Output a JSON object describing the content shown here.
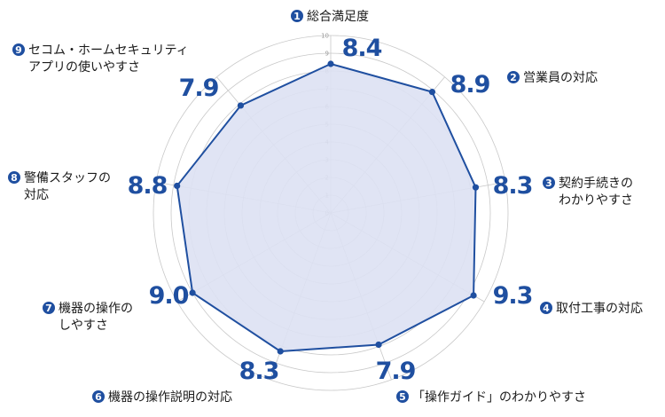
{
  "chart_data": {
    "type": "radar",
    "rmin": 0,
    "rmax": 10,
    "ticks": [
      "0",
      "1",
      "2",
      "3",
      "4",
      "5",
      "6",
      "7",
      "8",
      "9",
      "10"
    ],
    "grid": true,
    "colors": {
      "fill": "#dde1f3",
      "line": "#1f4fa0",
      "grid": "#c8c8c8",
      "badge": "#1f4fa0"
    },
    "axes": [
      {
        "num": "1",
        "lines": [
          "総合満足度"
        ],
        "value": 8.4,
        "value_text": "8.4"
      },
      {
        "num": "2",
        "lines": [
          "営業員の対応"
        ],
        "value": 8.9,
        "value_text": "8.9"
      },
      {
        "num": "3",
        "lines": [
          "契約手続きの",
          "わかりやすさ"
        ],
        "value": 8.3,
        "value_text": "8.3"
      },
      {
        "num": "4",
        "lines": [
          "取付工事の対応"
        ],
        "value": 9.3,
        "value_text": "9.3"
      },
      {
        "num": "5",
        "lines": [
          "「操作ガイド」のわかりやすさ"
        ],
        "value": 7.9,
        "value_text": "7.9"
      },
      {
        "num": "6",
        "lines": [
          "機器の操作説明の対応"
        ],
        "value": 8.3,
        "value_text": "8.3"
      },
      {
        "num": "7",
        "lines": [
          "機器の操作の",
          "しやすさ"
        ],
        "value": 9.0,
        "value_text": "9.0"
      },
      {
        "num": "8",
        "lines": [
          "警備スタッフの",
          "対応"
        ],
        "value": 8.8,
        "value_text": "8.8"
      },
      {
        "num": "9",
        "lines": [
          "セコム・ホームセキュリティ",
          "アプリの使いやすさ"
        ],
        "value": 7.9,
        "value_text": "7.9"
      }
    ]
  }
}
